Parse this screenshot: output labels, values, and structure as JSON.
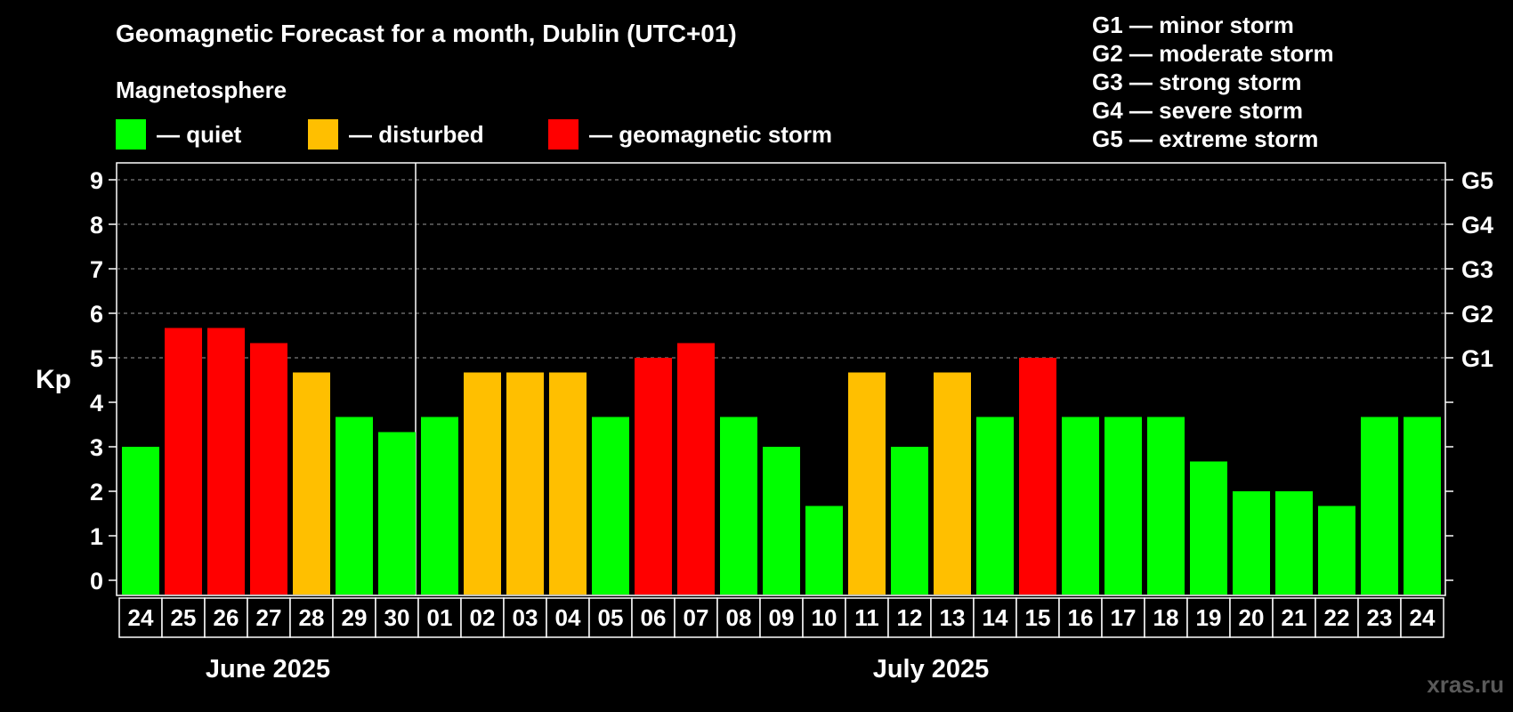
{
  "title": "Geomagnetic Forecast for a month, Dublin (UTC+01)",
  "magnetosphere": {
    "title": "Magnetosphere",
    "legend": [
      {
        "key": "quiet",
        "label": "— quiet",
        "color": "#00ff00"
      },
      {
        "key": "disturbed",
        "label": "— disturbed",
        "color": "#ffbf00"
      },
      {
        "key": "storm",
        "label": "— geomagnetic storm",
        "color": "#ff0000"
      }
    ]
  },
  "storm_scale": [
    "G1 — minor storm",
    "G2 — moderate storm",
    "G3 — strong storm",
    "G4 — severe storm",
    "G5 — extreme storm"
  ],
  "months": {
    "june": "June 2025",
    "july": "July 2025"
  },
  "watermark": "xras.ru",
  "chart_data": {
    "type": "bar",
    "ylabel": "Kp",
    "ylim": [
      0,
      9
    ],
    "yticks": [
      "0",
      "1",
      "2",
      "3",
      "4",
      "5",
      "6",
      "7",
      "8",
      "9"
    ],
    "right_ticks": [
      {
        "value": 5,
        "label": "G1"
      },
      {
        "value": 6,
        "label": "G2"
      },
      {
        "value": 7,
        "label": "G3"
      },
      {
        "value": 8,
        "label": "G4"
      },
      {
        "value": 9,
        "label": "G5"
      }
    ],
    "grid": "dashed horizontal at 5-9",
    "month_divider_after_index": 6,
    "categories": [
      "24",
      "25",
      "26",
      "27",
      "28",
      "29",
      "30",
      "01",
      "02",
      "03",
      "04",
      "05",
      "06",
      "07",
      "08",
      "09",
      "10",
      "11",
      "12",
      "13",
      "14",
      "15",
      "16",
      "17",
      "18",
      "19",
      "20",
      "21",
      "22",
      "23",
      "24"
    ],
    "values": [
      3.0,
      5.67,
      5.67,
      5.33,
      4.67,
      3.67,
      3.33,
      3.67,
      4.67,
      4.67,
      4.67,
      3.67,
      5.0,
      5.33,
      3.67,
      3.0,
      1.67,
      4.67,
      3.0,
      4.67,
      3.67,
      5.0,
      3.67,
      3.67,
      3.67,
      2.67,
      2.0,
      2.0,
      1.67,
      3.67,
      3.67
    ],
    "levels": [
      "quiet",
      "storm",
      "storm",
      "storm",
      "disturbed",
      "quiet",
      "quiet",
      "quiet",
      "disturbed",
      "disturbed",
      "disturbed",
      "quiet",
      "storm",
      "storm",
      "quiet",
      "quiet",
      "quiet",
      "disturbed",
      "quiet",
      "disturbed",
      "quiet",
      "storm",
      "quiet",
      "quiet",
      "quiet",
      "quiet",
      "quiet",
      "quiet",
      "quiet",
      "quiet",
      "quiet"
    ]
  }
}
